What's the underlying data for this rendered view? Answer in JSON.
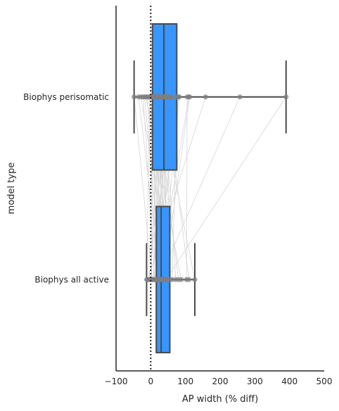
{
  "chart_data": {
    "type": "box",
    "orientation": "horizontal",
    "xlabel": "AP width (% diff)",
    "ylabel": "model type",
    "xlim": [
      -100,
      500
    ],
    "xticks": [
      -100,
      0,
      100,
      200,
      300,
      400,
      500
    ],
    "reference_line_x": 0,
    "box_color": "#3796ff",
    "box_edge_color": "#4a4a4a",
    "categories": [
      {
        "label": "Biophys perisomatic",
        "q1": 5,
        "median": 38,
        "q3": 75,
        "whisker_low": -48,
        "whisker_high": 390,
        "points": [
          -48,
          -35,
          -28,
          -22,
          -18,
          -14,
          -10,
          -6,
          -3,
          0,
          3,
          5,
          8,
          10,
          12,
          14,
          16,
          18,
          20,
          22,
          24,
          26,
          28,
          30,
          32,
          34,
          36,
          38,
          40,
          42,
          44,
          46,
          48,
          50,
          52,
          55,
          58,
          62,
          75,
          80,
          82,
          105,
          110,
          112,
          158,
          257,
          390
        ]
      },
      {
        "label": "Biophys all active",
        "q1": 16,
        "median": 30,
        "q3": 55,
        "whisker_low": -12,
        "whisker_high": 127,
        "points": [
          -12,
          -8,
          -5,
          -2,
          2,
          4,
          6,
          8,
          10,
          12,
          14,
          16,
          17,
          18,
          20,
          21,
          22,
          23,
          24,
          25,
          26,
          27,
          28,
          29,
          30,
          31,
          32,
          33,
          34,
          35,
          36,
          37,
          38,
          40,
          42,
          44,
          46,
          48,
          52,
          55,
          62,
          72,
          80,
          88,
          103,
          110,
          127
        ]
      }
    ]
  }
}
